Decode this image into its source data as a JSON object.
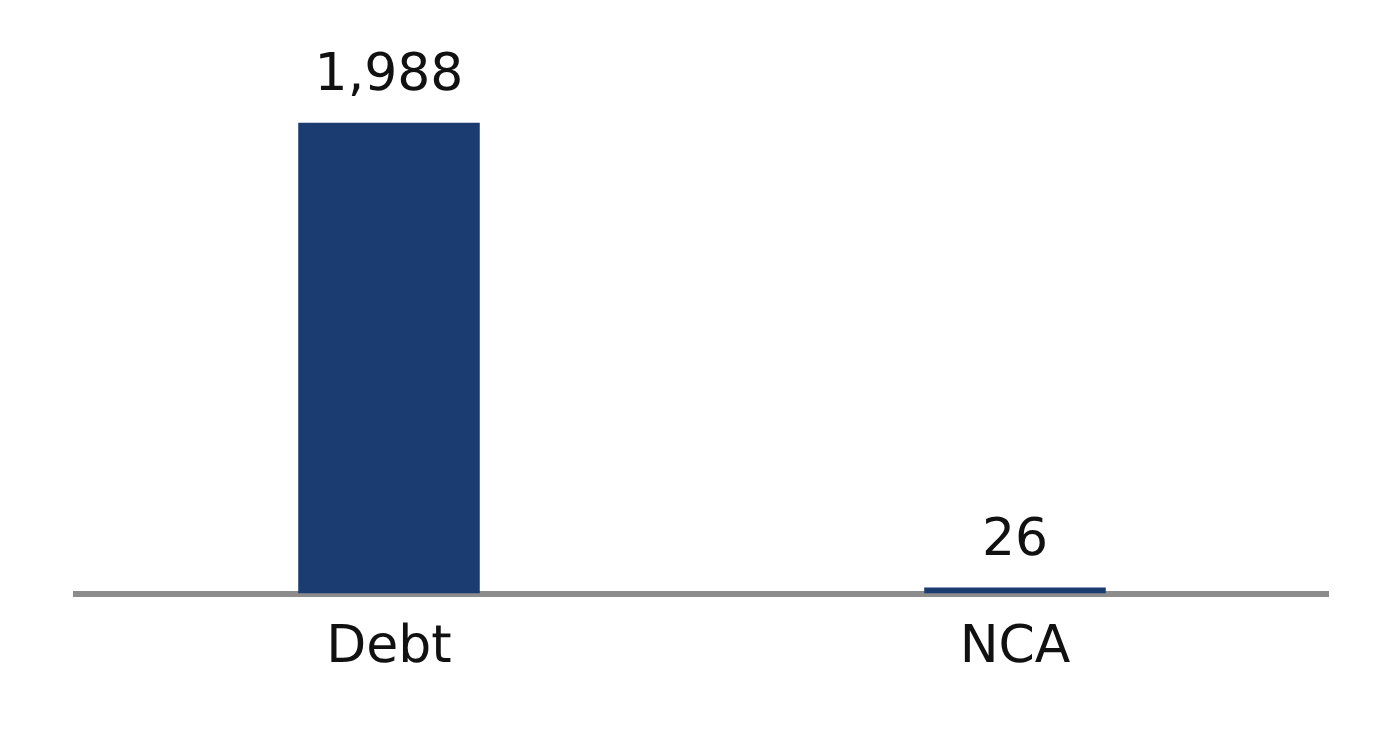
{
  "chart_data": {
    "type": "bar",
    "categories": [
      "Debt",
      "NCA"
    ],
    "values": [
      1988,
      26
    ],
    "value_labels": [
      "1,988",
      "26"
    ],
    "color": "#1a3c70",
    "grid": false,
    "legend": false
  }
}
